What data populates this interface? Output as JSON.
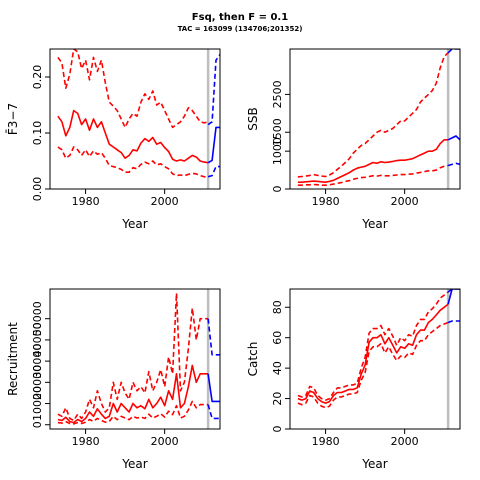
{
  "figure": {
    "title": "Fsq, then F = 0.1",
    "subtitle": "TAC = 163099 (134706;201352)"
  },
  "colors": {
    "history": "#ff0000",
    "projection": "#0000ff",
    "divider": "#bebebe",
    "axes": "#000000"
  },
  "chart_data": [
    {
      "type": "line",
      "panel": "top-left",
      "xlabel": "Year",
      "ylabel": "F̄3−7",
      "xlim": [
        1971,
        2014
      ],
      "ylim": [
        0,
        0.25
      ],
      "xticks": [
        1980,
        2000
      ],
      "xtick_labels": [
        "1980",
        "2000"
      ],
      "yticks": [
        0,
        0.1,
        0.2
      ],
      "ytick_labels": [
        "0.00",
        "0.10",
        "0.20"
      ],
      "vline": 2011,
      "x": [
        1973,
        1974,
        1975,
        1976,
        1977,
        1978,
        1979,
        1980,
        1981,
        1982,
        1983,
        1984,
        1985,
        1986,
        1987,
        1988,
        1989,
        1990,
        1991,
        1992,
        1993,
        1994,
        1995,
        1996,
        1997,
        1998,
        1999,
        2000,
        2001,
        2002,
        2003,
        2004,
        2005,
        2006,
        2007,
        2008,
        2009,
        2010,
        2011
      ],
      "series": [
        {
          "role": "median",
          "style": "solid",
          "color": "red",
          "values": [
            0.13,
            0.12,
            0.095,
            0.11,
            0.14,
            0.135,
            0.115,
            0.125,
            0.105,
            0.125,
            0.11,
            0.12,
            0.1,
            0.08,
            0.075,
            0.07,
            0.065,
            0.055,
            0.06,
            0.07,
            0.068,
            0.082,
            0.09,
            0.085,
            0.092,
            0.08,
            0.083,
            0.074,
            0.067,
            0.053,
            0.05,
            0.052,
            0.05,
            0.055,
            0.06,
            0.057,
            0.05,
            0.048,
            0.047
          ]
        },
        {
          "role": "upper",
          "style": "dashed",
          "color": "red",
          "values": [
            0.235,
            0.225,
            0.18,
            0.205,
            0.25,
            0.245,
            0.215,
            0.23,
            0.195,
            0.235,
            0.21,
            0.23,
            0.19,
            0.155,
            0.148,
            0.14,
            0.125,
            0.11,
            0.125,
            0.135,
            0.13,
            0.155,
            0.17,
            0.16,
            0.175,
            0.15,
            0.155,
            0.14,
            0.125,
            0.11,
            0.115,
            0.12,
            0.13,
            0.145,
            0.14,
            0.13,
            0.12,
            0.118,
            0.12
          ]
        },
        {
          "role": "lower",
          "style": "dashed",
          "color": "red",
          "values": [
            0.075,
            0.07,
            0.055,
            0.06,
            0.075,
            0.07,
            0.06,
            0.07,
            0.058,
            0.068,
            0.062,
            0.065,
            0.055,
            0.042,
            0.04,
            0.038,
            0.035,
            0.03,
            0.03,
            0.038,
            0.036,
            0.044,
            0.048,
            0.045,
            0.05,
            0.043,
            0.045,
            0.04,
            0.036,
            0.027,
            0.024,
            0.025,
            0.024,
            0.026,
            0.028,
            0.027,
            0.024,
            0.022,
            0.02
          ]
        }
      ],
      "projection_x": [
        2011,
        2012,
        2013,
        2014
      ],
      "projection": [
        {
          "role": "median",
          "style": "solid",
          "color": "blue",
          "values": [
            0.047,
            0.051,
            0.11,
            0.11
          ]
        },
        {
          "role": "upper",
          "style": "dashed",
          "color": "blue",
          "values": [
            0.115,
            0.12,
            0.23,
            0.24
          ]
        },
        {
          "role": "lower",
          "style": "dashed",
          "color": "blue",
          "values": [
            0.022,
            0.024,
            0.04,
            0.04
          ]
        }
      ]
    },
    {
      "type": "line",
      "panel": "top-right",
      "xlabel": "Year",
      "ylabel": "SSB",
      "xlim": [
        1971,
        2014
      ],
      "ylim": [
        0,
        3700
      ],
      "xticks": [
        1980,
        2000
      ],
      "xtick_labels": [
        "1980",
        "2000"
      ],
      "yticks": [
        0,
        1000,
        1500,
        2500
      ],
      "ytick_labels": [
        "0",
        "1000",
        "1500",
        "2500"
      ],
      "vline": 2011,
      "x": [
        1973,
        1974,
        1975,
        1976,
        1977,
        1978,
        1979,
        1980,
        1981,
        1982,
        1983,
        1984,
        1985,
        1986,
        1987,
        1988,
        1989,
        1990,
        1991,
        1992,
        1993,
        1994,
        1995,
        1996,
        1997,
        1998,
        1999,
        2000,
        2001,
        2002,
        2003,
        2004,
        2005,
        2006,
        2007,
        2008,
        2009,
        2010,
        2011
      ],
      "series": [
        {
          "role": "median",
          "style": "solid",
          "color": "red",
          "values": [
            180,
            180,
            190,
            200,
            210,
            200,
            190,
            180,
            200,
            230,
            280,
            330,
            380,
            430,
            500,
            550,
            580,
            600,
            650,
            700,
            680,
            720,
            700,
            710,
            730,
            750,
            760,
            760,
            780,
            800,
            850,
            900,
            950,
            1000,
            1000,
            1050,
            1200,
            1300,
            1300
          ]
        },
        {
          "role": "upper",
          "style": "dashed",
          "color": "red",
          "values": [
            320,
            330,
            340,
            360,
            380,
            360,
            340,
            330,
            370,
            430,
            520,
            600,
            700,
            800,
            950,
            1050,
            1150,
            1200,
            1300,
            1400,
            1500,
            1550,
            1500,
            1550,
            1600,
            1700,
            1800,
            1800,
            1900,
            2000,
            2100,
            2300,
            2400,
            2500,
            2600,
            2800,
            3200,
            3500,
            3600
          ]
        },
        {
          "role": "lower",
          "style": "dashed",
          "color": "red",
          "values": [
            100,
            100,
            110,
            110,
            120,
            110,
            100,
            100,
            110,
            130,
            150,
            170,
            200,
            220,
            260,
            280,
            300,
            310,
            330,
            350,
            340,
            360,
            350,
            350,
            360,
            370,
            380,
            380,
            390,
            400,
            420,
            440,
            460,
            480,
            480,
            500,
            560,
            600,
            620
          ]
        }
      ],
      "projection_x": [
        2011,
        2012,
        2013,
        2014
      ],
      "projection": [
        {
          "role": "median",
          "style": "solid",
          "color": "blue",
          "values": [
            1300,
            1350,
            1400,
            1300
          ]
        },
        {
          "role": "upper",
          "style": "dashed",
          "color": "blue",
          "values": [
            3600,
            3700,
            3700,
            3700
          ]
        },
        {
          "role": "lower",
          "style": "dashed",
          "color": "blue",
          "values": [
            620,
            650,
            680,
            650
          ]
        }
      ]
    },
    {
      "type": "line",
      "panel": "bottom-left",
      "xlabel": "Year",
      "ylabel": "Recruitment",
      "xlim": [
        1971,
        2014
      ],
      "ylim": [
        -2000,
        64000
      ],
      "xticks": [
        1980,
        2000
      ],
      "xtick_labels": [
        "1980",
        "2000"
      ],
      "yticks": [
        0,
        10000,
        20000,
        30000,
        40000,
        50000
      ],
      "ytick_labels": [
        "0",
        "10000",
        "20000",
        "30000",
        "40000",
        "50000"
      ],
      "vline": 2011,
      "x": [
        1973,
        1974,
        1975,
        1976,
        1977,
        1978,
        1979,
        1980,
        1981,
        1982,
        1983,
        1984,
        1985,
        1986,
        1987,
        1988,
        1989,
        1990,
        1991,
        1992,
        1993,
        1994,
        1995,
        1996,
        1997,
        1998,
        1999,
        2000,
        2001,
        2002,
        2003,
        2004,
        2005,
        2006,
        2007,
        2008,
        2009,
        2010,
        2011
      ],
      "series": [
        {
          "role": "median",
          "style": "solid",
          "color": "red",
          "values": [
            2500,
            2000,
            3500,
            1500,
            1000,
            2500,
            1500,
            3000,
            6000,
            4000,
            7500,
            5000,
            3000,
            4000,
            10000,
            6000,
            10000,
            8000,
            6000,
            10000,
            8000,
            9000,
            7500,
            12000,
            8000,
            10000,
            13000,
            9000,
            16000,
            12000,
            24000,
            8000,
            10000,
            18000,
            28000,
            20000,
            24000,
            24000,
            24000
          ]
        },
        {
          "role": "upper",
          "style": "dashed",
          "color": "red",
          "values": [
            5000,
            4000,
            8000,
            3000,
            2000,
            5000,
            3000,
            6000,
            12000,
            8000,
            16000,
            10000,
            6000,
            8000,
            20000,
            12000,
            20000,
            15000,
            12000,
            20000,
            16000,
            18000,
            15000,
            25000,
            16000,
            20000,
            26000,
            18000,
            32000,
            24000,
            62000,
            16000,
            20000,
            36000,
            55000,
            40000,
            50000,
            50000,
            50000
          ]
        },
        {
          "role": "lower",
          "style": "dashed",
          "color": "red",
          "values": [
            1000,
            800,
            1500,
            600,
            400,
            1000,
            600,
            1200,
            2500,
            1600,
            3000,
            2000,
            1200,
            1600,
            4000,
            2400,
            4000,
            3200,
            2400,
            4000,
            3200,
            3600,
            3000,
            5000,
            3200,
            4000,
            5200,
            3600,
            6400,
            4800,
            9000,
            3200,
            4000,
            7000,
            11000,
            8000,
            9500,
            9500,
            9500
          ]
        }
      ],
      "projection_x": [
        2011,
        2012,
        2013,
        2014
      ],
      "projection": [
        {
          "role": "median",
          "style": "solid",
          "color": "blue",
          "values": [
            24000,
            11000,
            11000,
            11000
          ]
        },
        {
          "role": "upper",
          "style": "dashed",
          "color": "blue",
          "values": [
            50000,
            33000,
            33000,
            33000
          ]
        },
        {
          "role": "lower",
          "style": "dashed",
          "color": "blue",
          "values": [
            9500,
            3000,
            3000,
            3000
          ]
        }
      ]
    },
    {
      "type": "line",
      "panel": "bottom-right",
      "xlabel": "Year",
      "ylabel": "Catch",
      "xlim": [
        1971,
        2014
      ],
      "ylim": [
        0,
        92
      ],
      "xticks": [
        1980,
        2000
      ],
      "xtick_labels": [
        "1980",
        "2000"
      ],
      "yticks": [
        0,
        20,
        40,
        60,
        80
      ],
      "ytick_labels": [
        "0",
        "20",
        "40",
        "60",
        "80"
      ],
      "vline": 2011,
      "x": [
        1973,
        1974,
        1975,
        1976,
        1977,
        1978,
        1979,
        1980,
        1981,
        1982,
        1983,
        1984,
        1985,
        1986,
        1987,
        1988,
        1989,
        1990,
        1991,
        1992,
        1993,
        1994,
        1995,
        1996,
        1997,
        1998,
        1999,
        2000,
        2001,
        2002,
        2003,
        2004,
        2005,
        2006,
        2007,
        2008,
        2009,
        2010,
        2011
      ],
      "series": [
        {
          "role": "median",
          "style": "solid",
          "color": "red",
          "values": [
            20,
            19,
            20,
            25,
            24,
            20,
            18,
            17,
            18,
            22,
            24,
            24,
            25,
            26,
            26,
            27,
            36,
            42,
            57,
            60,
            60,
            62,
            56,
            60,
            55,
            50,
            54,
            53,
            56,
            55,
            62,
            65,
            65,
            70,
            72,
            75,
            78,
            80,
            82
          ]
        },
        {
          "role": "upper",
          "style": "dashed",
          "color": "red",
          "values": [
            22,
            21,
            22,
            28,
            27,
            22,
            20,
            19,
            20,
            24,
            27,
            27,
            28,
            29,
            29,
            30,
            40,
            47,
            63,
            66,
            66,
            68,
            62,
            66,
            61,
            55,
            60,
            58,
            62,
            61,
            68,
            72,
            72,
            77,
            79,
            82,
            86,
            88,
            90
          ]
        },
        {
          "role": "lower",
          "style": "dashed",
          "color": "red",
          "values": [
            17,
            16,
            17,
            22,
            21,
            17,
            15,
            14,
            15,
            19,
            21,
            21,
            22,
            23,
            23,
            24,
            32,
            37,
            51,
            54,
            54,
            56,
            50,
            54,
            49,
            45,
            48,
            47,
            50,
            49,
            55,
            58,
            58,
            62,
            64,
            66,
            68,
            69,
            70
          ]
        }
      ],
      "projection_x": [
        2011,
        2012,
        2013,
        2014
      ],
      "projection": [
        {
          "role": "median",
          "style": "solid",
          "color": "blue",
          "values": [
            82,
            92,
            92,
            92
          ]
        },
        {
          "role": "upper",
          "style": "dashed",
          "color": "blue",
          "values": [
            90,
            92,
            92,
            92
          ]
        },
        {
          "role": "lower",
          "style": "dashed",
          "color": "blue",
          "values": [
            70,
            71,
            71,
            71
          ]
        }
      ]
    }
  ]
}
